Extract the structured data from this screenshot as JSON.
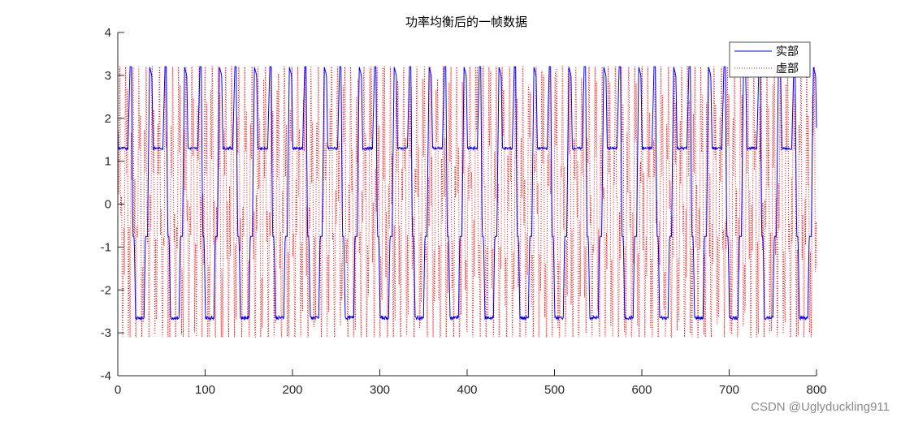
{
  "chart_data": {
    "type": "line",
    "title": "功率均衡后的一帧数据",
    "xlabel": "",
    "ylabel": "",
    "xlim": [
      0,
      800
    ],
    "ylim": [
      -4,
      4
    ],
    "xticks": [
      0,
      100,
      200,
      300,
      400,
      500,
      600,
      700,
      800
    ],
    "yticks": [
      -4,
      -3,
      -2,
      -1,
      0,
      1,
      2,
      3,
      4
    ],
    "grid": false,
    "legend_position": "top-right",
    "series": [
      {
        "name": "实部",
        "color": "#0000ff",
        "style": "solid",
        "description": "square-like wave alternating between high plateau ~1.3 and low plateau ~-2.65, with peaks ~3.2 and dips ~-0.8; period ~40 samples",
        "high_plateau": 1.3,
        "low_plateau": -2.65,
        "peak": 3.2,
        "mid_step": -0.75,
        "period": 40
      },
      {
        "name": "虚部",
        "color": "#ff0000",
        "style": "dotted",
        "description": "rapidly oscillating dotted signal spanning approximately -3.1 to 3.2",
        "min": -3.1,
        "max": 3.2
      }
    ]
  },
  "watermark": "CSDN @Uglyduckling911"
}
